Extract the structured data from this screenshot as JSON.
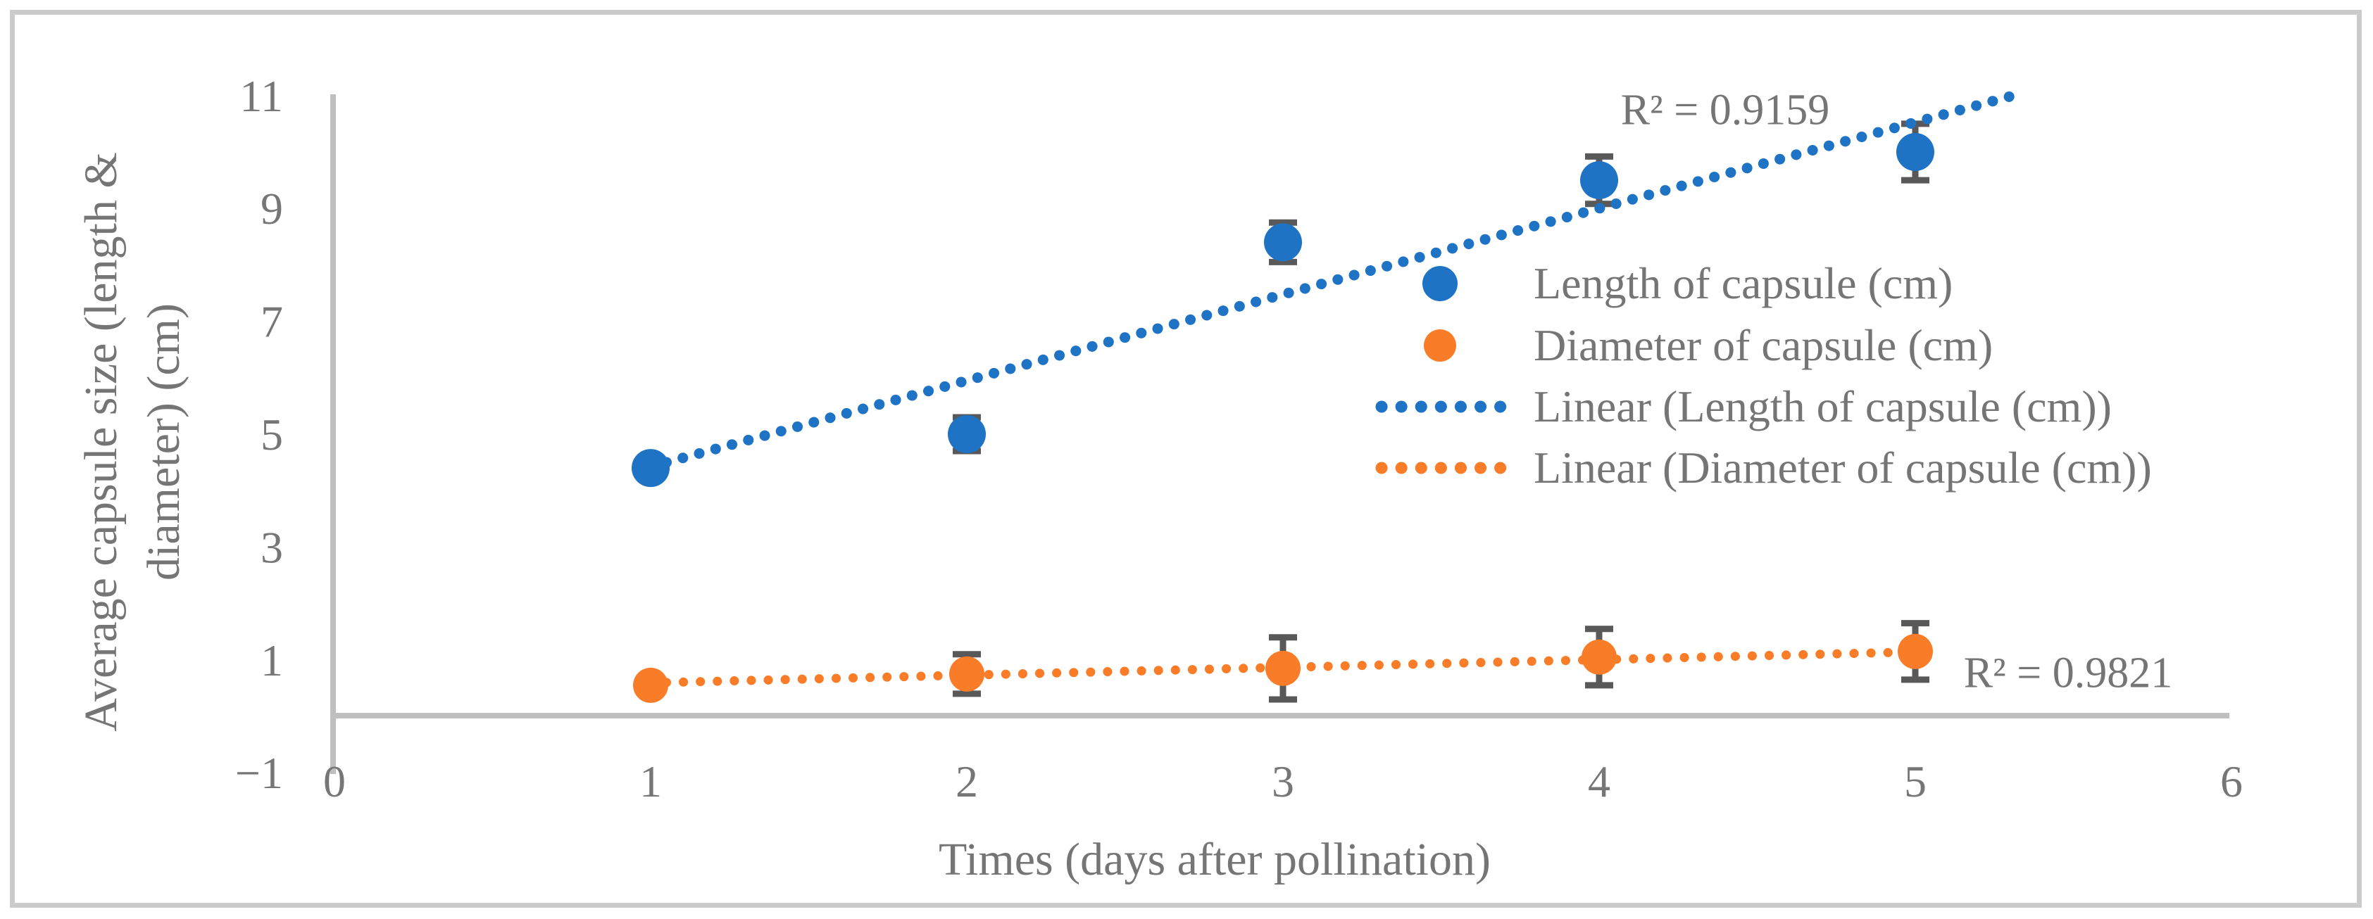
{
  "figure": {
    "y_axis_title_line1": "Average capsule size (length &",
    "y_axis_title_line2": "diameter) (cm)",
    "x_axis_title": "Times (days after pollination)"
  },
  "legend": {
    "position": "middle-right",
    "items": [
      {
        "label": "Length of capsule (cm)",
        "marker": "filled-circle",
        "color": "#1F73C5"
      },
      {
        "label": "Diameter of capsule (cm)",
        "marker": "filled-circle",
        "color": "#F97D28"
      },
      {
        "label": "Linear (Length of capsule (cm))",
        "marker": "dotted-line",
        "color": "#1F73C5"
      },
      {
        "label": "Linear (Diameter of capsule (cm))",
        "marker": "dotted-line",
        "color": "#F97D28"
      }
    ]
  },
  "annotations": {
    "r2_length": "R² = 0.9159",
    "r2_diameter": "R² = 0.9821"
  },
  "colors": {
    "length_series": "#1F73C5",
    "diameter_series": "#F97D28",
    "axis_line": "#BFBFBF",
    "error_bar": "#595959",
    "text_gray": "#757575",
    "outer_border": "#CBCBCB",
    "background": "#FFFFFF"
  },
  "chart_data": {
    "type": "scatter",
    "title": "",
    "xlabel": "Times (days after pollination)",
    "ylabel": "Average capsule size (length & diameter) (cm)",
    "x": [
      1,
      2,
      3,
      4,
      5
    ],
    "series": [
      {
        "name": "Length of capsule (cm)",
        "color": "#1F73C5",
        "values": [
          4.4,
          5.0,
          8.4,
          9.5,
          10.0
        ],
        "errors": [
          0,
          0.3,
          0.35,
          0.42,
          0.5
        ],
        "r_squared": 0.9159,
        "trendline": {
          "x1": 1.05,
          "y1": 4.5,
          "x2": 5.31,
          "y2": 11.0
        }
      },
      {
        "name": "Diameter of capsule (cm)",
        "color": "#F97D28",
        "values": [
          0.55,
          0.75,
          0.85,
          1.05,
          1.15
        ],
        "errors": [
          0,
          0.35,
          0.55,
          0.5,
          0.5
        ],
        "r_squared": 0.9821,
        "trendline": {
          "x1": 1.05,
          "y1": 0.6,
          "x2": 5.06,
          "y2": 1.15
        }
      }
    ],
    "x_axis": {
      "range": [
        0,
        6
      ],
      "ticks": [
        0,
        1,
        2,
        3,
        4,
        5,
        6
      ]
    },
    "y_axis": {
      "range": [
        -1,
        11
      ],
      "ticks": [
        11,
        9,
        7,
        5,
        3,
        1,
        -1
      ]
    },
    "grid": false,
    "legend_position": "middle-right"
  }
}
